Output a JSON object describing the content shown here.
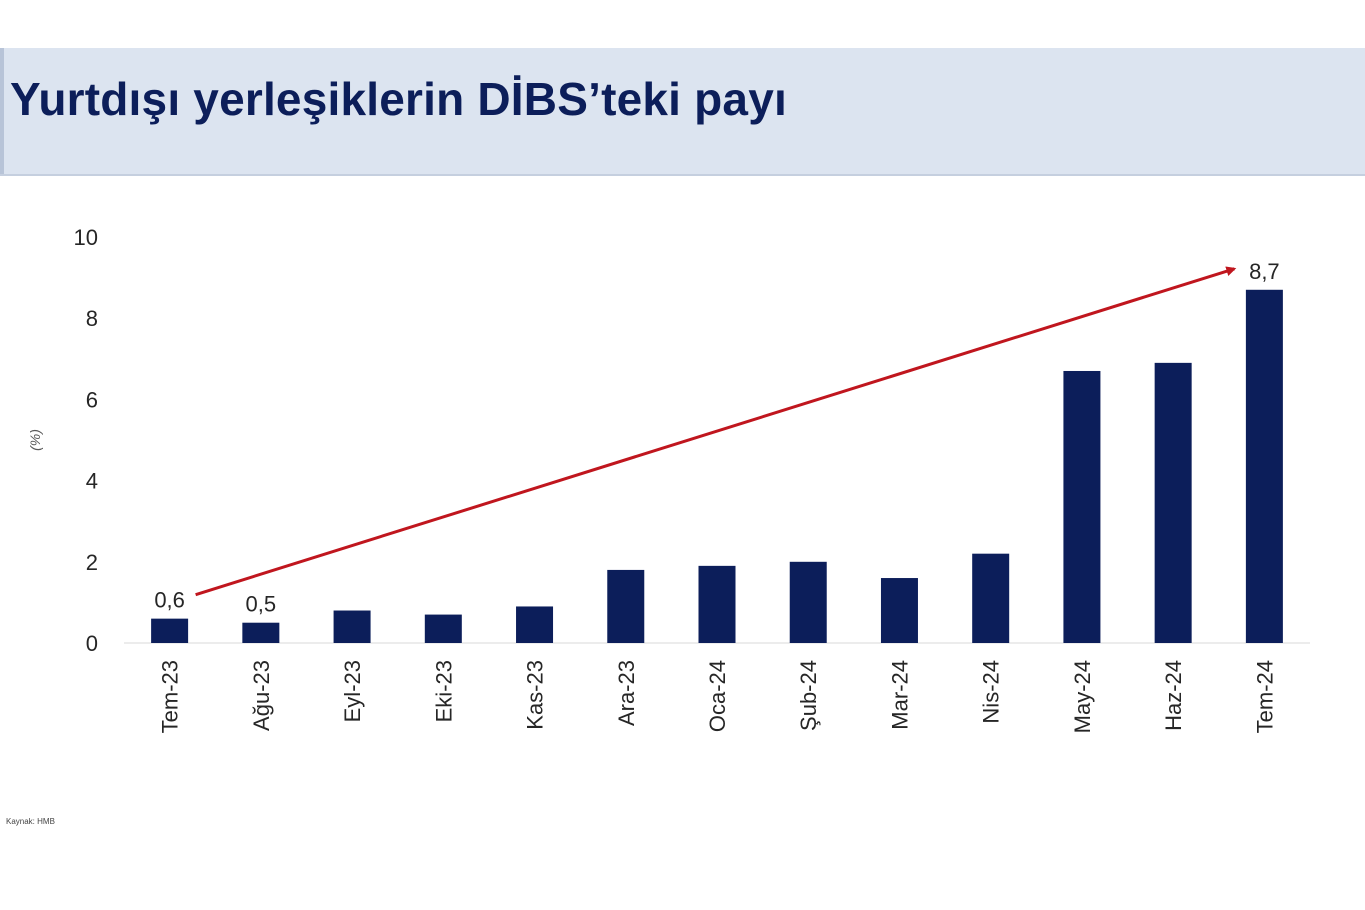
{
  "header": {
    "title": "Yurtdışı yerleşiklerin DİBS’teki payı"
  },
  "footer": {
    "source": "Kaynak: HMB"
  },
  "colors": {
    "bar": "#0c1e5a",
    "trend_arrow": "#c0161e",
    "title_band": "#dce4f0",
    "title_text": "#0c1e5a"
  },
  "chart_data": {
    "type": "bar",
    "title": "Yurtdışı yerleşiklerin DİBS’teki payı",
    "xlabel": "",
    "ylabel": "(%)",
    "ylim": [
      0,
      10
    ],
    "yticks": [
      "0",
      "2",
      "4",
      "6",
      "8",
      "10"
    ],
    "grid": false,
    "legend": "none",
    "categories": [
      "Tem-23",
      "Ağu-23",
      "Eyl-23",
      "Eki-23",
      "Kas-23",
      "Ara-23",
      "Oca-24",
      "Şub-24",
      "Mar-24",
      "Nis-24",
      "May-24",
      "Haz-24",
      "Tem-24"
    ],
    "values": [
      0.6,
      0.5,
      0.8,
      0.7,
      0.9,
      1.8,
      1.9,
      2.0,
      1.6,
      2.2,
      6.7,
      6.9,
      8.7
    ],
    "data_labels": [
      {
        "category": "Tem-23",
        "text": "0,6"
      },
      {
        "category": "Ağu-23",
        "text": "0,5"
      },
      {
        "category": "Tem-24",
        "text": "8,7"
      }
    ],
    "annotations": [
      {
        "type": "trend-arrow",
        "from": {
          "category": "Tem-23",
          "value": 0.6
        },
        "to": {
          "category": "Tem-24",
          "value": 8.7
        }
      }
    ]
  }
}
